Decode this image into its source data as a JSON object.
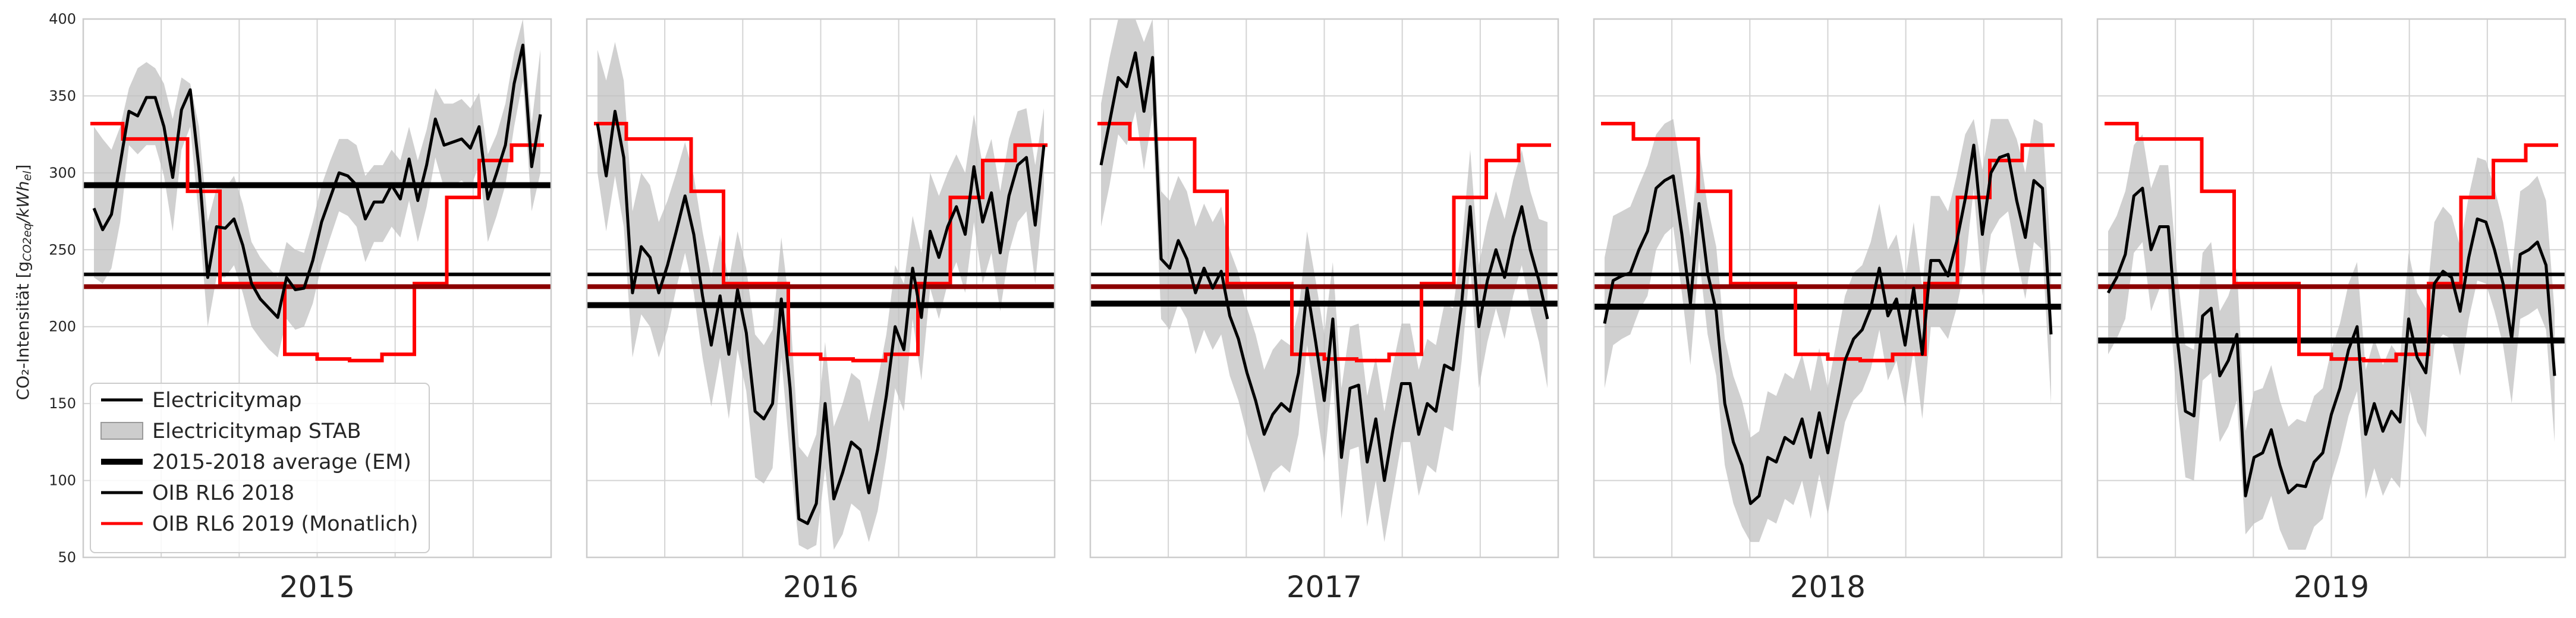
{
  "chart_data": {
    "type": "line",
    "ylabel": "CO₂-Intensität [g",
    "ylabel_sub": "CO2eq",
    "ylabel_unit": "/kWh",
    "ylabel_sub2": "el",
    "ylabel_close": "]",
    "ylim": [
      50,
      400
    ],
    "yticks": [
      50,
      100,
      150,
      200,
      250,
      300,
      350,
      400
    ],
    "grid": true,
    "shared_y": true,
    "legend": {
      "placement": "lower-left of first panel",
      "entries": [
        {
          "label": "Electricitymap",
          "color": "#000000",
          "style": "line"
        },
        {
          "label": "Electricitymap STAB",
          "color": "#c0c0c0",
          "style": "band"
        },
        {
          "label": "2015-2018 average (EM)",
          "color": "#000000",
          "style": "thick line"
        },
        {
          "label": "OIB RL6 2018",
          "color": "#000000",
          "style": "line"
        },
        {
          "label": "OIB RL6 2019 (Monatlich)",
          "color": "#ff0000",
          "style": "step"
        }
      ]
    },
    "colors": {
      "em": "#000000",
      "band": "#c0c0c0",
      "oib2019": "#ff0000",
      "overlap": "#8b0000",
      "grid": "#d4d4d4"
    },
    "oib_rl6_2018": 234,
    "oib_monthly_2019": [
      332,
      322,
      322,
      288,
      228,
      228,
      182,
      179,
      178,
      182,
      228,
      284,
      308,
      318
    ],
    "panels": [
      {
        "title": "2015",
        "average_em": 292,
        "em": [
          277,
          263,
          273,
          306,
          340,
          337,
          349,
          349,
          330,
          297,
          341,
          354,
          303,
          232,
          265,
          264,
          270,
          253,
          228,
          218,
          212,
          206,
          232,
          224,
          225,
          243,
          268,
          284,
          300,
          298,
          292,
          270,
          281,
          281,
          292,
          283,
          309,
          282,
          305,
          335,
          318,
          320,
          322,
          316,
          330,
          283,
          300,
          318,
          358,
          383,
          304,
          338
        ],
        "stab_upper": [
          330,
          322,
          315,
          330,
          355,
          368,
          372,
          368,
          358,
          335,
          362,
          358,
          330,
          268,
          290,
          290,
          298,
          280,
          255,
          245,
          238,
          232,
          255,
          250,
          248,
          268,
          292,
          308,
          322,
          322,
          318,
          298,
          305,
          305,
          315,
          308,
          330,
          308,
          328,
          355,
          345,
          345,
          348,
          342,
          352,
          312,
          325,
          345,
          378,
          400,
          332,
          380
        ],
        "stab_lower": [
          232,
          228,
          238,
          268,
          318,
          312,
          318,
          318,
          298,
          262,
          315,
          330,
          270,
          200,
          232,
          232,
          240,
          222,
          200,
          192,
          185,
          180,
          205,
          198,
          200,
          215,
          240,
          258,
          275,
          272,
          265,
          242,
          255,
          255,
          265,
          258,
          282,
          255,
          278,
          310,
          290,
          292,
          295,
          290,
          305,
          255,
          272,
          292,
          330,
          360,
          275,
          300
        ]
      },
      {
        "title": "2016",
        "average_em": 214,
        "em": [
          332,
          298,
          340,
          310,
          222,
          252,
          245,
          222,
          240,
          262,
          285,
          260,
          220,
          188,
          220,
          182,
          224,
          196,
          145,
          140,
          150,
          218,
          160,
          75,
          72,
          85,
          150,
          88,
          105,
          125,
          120,
          92,
          120,
          155,
          200,
          185,
          238,
          206,
          262,
          245,
          265,
          278,
          260,
          304,
          268,
          287,
          248,
          285,
          305,
          310,
          266,
          318
        ],
        "stab_upper": [
          380,
          360,
          385,
          360,
          275,
          300,
          292,
          268,
          282,
          300,
          320,
          298,
          262,
          232,
          260,
          230,
          262,
          238,
          195,
          188,
          198,
          258,
          210,
          122,
          115,
          130,
          190,
          135,
          150,
          170,
          165,
          138,
          165,
          195,
          240,
          228,
          272,
          248,
          300,
          285,
          300,
          312,
          300,
          338,
          305,
          322,
          288,
          322,
          340,
          342,
          305,
          342
        ],
        "stab_lower": [
          300,
          262,
          298,
          265,
          180,
          208,
          200,
          180,
          198,
          225,
          248,
          222,
          180,
          148,
          180,
          140,
          185,
          158,
          102,
          98,
          108,
          180,
          115,
          58,
          55,
          58,
          108,
          55,
          65,
          85,
          80,
          60,
          80,
          115,
          160,
          145,
          205,
          165,
          225,
          205,
          228,
          242,
          222,
          268,
          228,
          248,
          210,
          248,
          268,
          275,
          228,
          288
        ]
      },
      {
        "title": "2017",
        "average_em": 215,
        "em": [
          305,
          333,
          362,
          356,
          378,
          340,
          375,
          244,
          238,
          256,
          244,
          222,
          238,
          225,
          236,
          207,
          192,
          170,
          152,
          130,
          143,
          150,
          145,
          170,
          225,
          190,
          152,
          205,
          115,
          160,
          162,
          112,
          140,
          100,
          133,
          163,
          163,
          130,
          150,
          145,
          175,
          172,
          215,
          278,
          200,
          230,
          250,
          232,
          258,
          278,
          250,
          230,
          205
        ],
        "stab_upper": [
          345,
          375,
          400,
          400,
          400,
          385,
          400,
          288,
          282,
          298,
          288,
          265,
          280,
          268,
          278,
          250,
          235,
          212,
          195,
          172,
          185,
          192,
          188,
          210,
          262,
          230,
          195,
          242,
          160,
          200,
          202,
          155,
          180,
          145,
          175,
          202,
          202,
          172,
          192,
          188,
          215,
          212,
          252,
          315,
          240,
          268,
          288,
          270,
          295,
          315,
          288,
          270,
          268
        ],
        "stab_lower": [
          265,
          292,
          325,
          318,
          340,
          302,
          338,
          205,
          198,
          215,
          205,
          182,
          198,
          185,
          195,
          168,
          152,
          130,
          112,
          92,
          105,
          110,
          105,
          130,
          188,
          150,
          112,
          168,
          75,
          120,
          122,
          70,
          100,
          60,
          92,
          125,
          125,
          90,
          110,
          105,
          135,
          132,
          178,
          240,
          160,
          190,
          212,
          192,
          220,
          240,
          212,
          190,
          160
        ]
      },
      {
        "title": "2018",
        "average_em": 213,
        "em": [
          202,
          230,
          233,
          235,
          250,
          262,
          290,
          295,
          298,
          260,
          215,
          280,
          235,
          210,
          150,
          125,
          110,
          85,
          90,
          115,
          112,
          128,
          124,
          140,
          115,
          144,
          118,
          148,
          178,
          192,
          198,
          212,
          238,
          207,
          218,
          188,
          225,
          182,
          243,
          243,
          233,
          255,
          283,
          318,
          260,
          300,
          310,
          312,
          282,
          258,
          295,
          290,
          195
        ],
        "stab_upper": [
          245,
          272,
          275,
          278,
          292,
          305,
          325,
          332,
          335,
          298,
          258,
          318,
          278,
          252,
          192,
          168,
          152,
          128,
          132,
          158,
          155,
          170,
          166,
          182,
          158,
          186,
          160,
          190,
          220,
          235,
          240,
          255,
          280,
          250,
          260,
          230,
          268,
          225,
          285,
          285,
          275,
          298,
          325,
          335,
          302,
          335,
          335,
          335,
          322,
          300,
          335,
          332,
          245
        ],
        "stab_lower": [
          160,
          188,
          192,
          195,
          210,
          220,
          250,
          260,
          265,
          222,
          175,
          245,
          195,
          168,
          110,
          85,
          70,
          60,
          60,
          75,
          72,
          88,
          84,
          100,
          75,
          104,
          78,
          108,
          138,
          152,
          158,
          172,
          198,
          165,
          178,
          148,
          185,
          140,
          200,
          200,
          192,
          212,
          240,
          290,
          220,
          260,
          270,
          275,
          245,
          218,
          255,
          250,
          150
        ]
      },
      {
        "title": "2019",
        "average_em": 191,
        "em": [
          222,
          232,
          247,
          285,
          290,
          250,
          265,
          265,
          195,
          145,
          142,
          207,
          212,
          168,
          178,
          195,
          90,
          115,
          118,
          133,
          110,
          92,
          97,
          96,
          112,
          118,
          143,
          160,
          185,
          200,
          130,
          150,
          132,
          145,
          138,
          205,
          180,
          170,
          228,
          236,
          232,
          210,
          245,
          270,
          268,
          250,
          228,
          192,
          247,
          250,
          255,
          240,
          168
        ],
        "stab_upper": [
          262,
          272,
          288,
          318,
          325,
          290,
          305,
          305,
          238,
          188,
          185,
          248,
          255,
          210,
          220,
          238,
          132,
          158,
          160,
          175,
          152,
          135,
          140,
          138,
          155,
          160,
          185,
          202,
          228,
          242,
          172,
          192,
          175,
          188,
          180,
          248,
          222,
          212,
          268,
          278,
          272,
          252,
          285,
          310,
          308,
          290,
          268,
          235,
          288,
          292,
          298,
          282,
          210
        ],
        "stab_lower": [
          182,
          192,
          205,
          248,
          255,
          210,
          225,
          225,
          152,
          102,
          100,
          165,
          170,
          125,
          135,
          152,
          65,
          72,
          75,
          90,
          68,
          55,
          55,
          55,
          70,
          75,
          100,
          118,
          142,
          158,
          88,
          108,
          90,
          102,
          95,
          162,
          138,
          128,
          188,
          195,
          192,
          168,
          205,
          230,
          228,
          210,
          188,
          150,
          205,
          208,
          212,
          198,
          125
        ]
      }
    ]
  }
}
